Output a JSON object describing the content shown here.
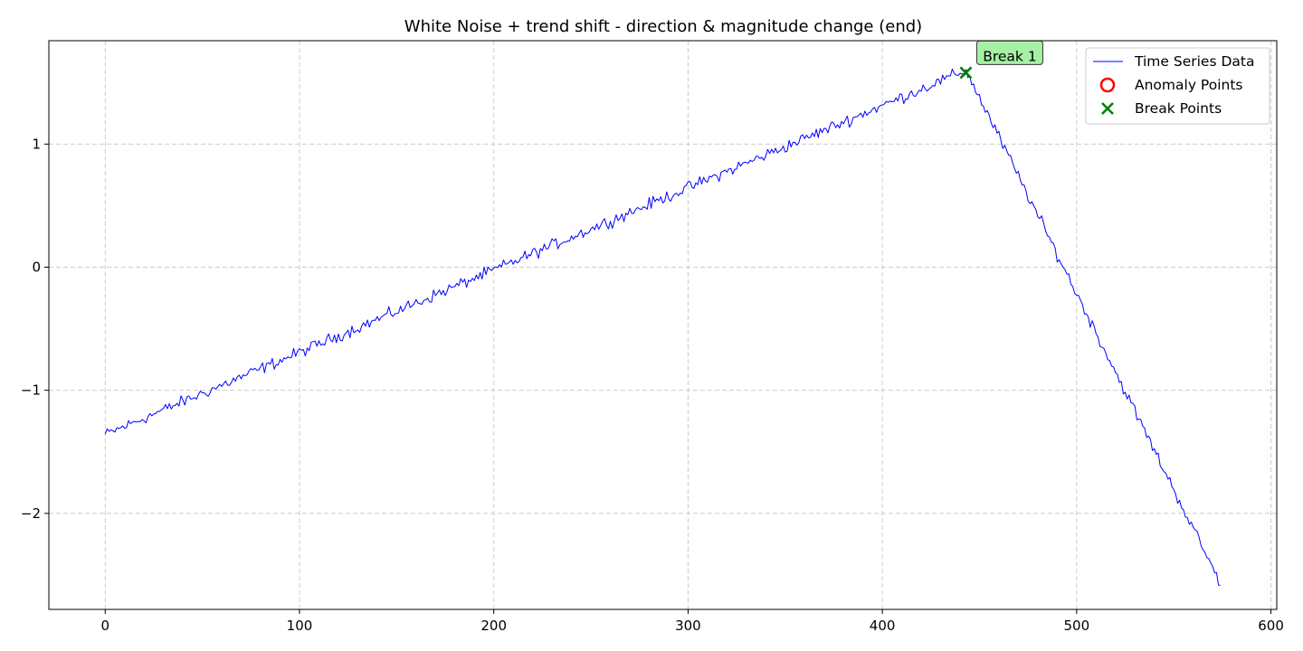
{
  "chart_data": {
    "type": "line",
    "title": "White Noise + trend shift - direction & magnitude change (end)",
    "xlabel": "",
    "ylabel": "",
    "xlim": [
      -29,
      603
    ],
    "ylim": [
      -2.78,
      1.84
    ],
    "x_ticks": [
      0,
      100,
      200,
      300,
      400,
      500,
      600
    ],
    "x_tick_labels": [
      "0",
      "100",
      "200",
      "300",
      "400",
      "500",
      "600"
    ],
    "y_ticks": [
      -2,
      -1,
      0,
      1
    ],
    "y_tick_labels": [
      "−2",
      "−1",
      "0",
      "1"
    ],
    "grid": true,
    "legend_position": "top-right",
    "series": [
      {
        "name": "Time Series Data",
        "color": "#0000ff",
        "segments": [
          {
            "x_start": 0,
            "x_end": 443,
            "y_start": -1.36,
            "y_end": 1.6
          },
          {
            "x_start": 443,
            "x_end": 574,
            "y_start": 1.6,
            "y_end": -2.57
          }
        ],
        "noise_amplitude": 0.03
      }
    ],
    "anomaly_points": [],
    "break_points": [
      {
        "x": 443,
        "y": 1.58
      }
    ],
    "legend": {
      "entries": [
        {
          "label": "Time Series Data",
          "marker": "line",
          "color": "#0000ff"
        },
        {
          "label": "Anomaly Points",
          "marker": "circle",
          "color": "#ff0000"
        },
        {
          "label": "Break Points",
          "marker": "x",
          "color": "#008000"
        }
      ]
    },
    "annotations": [
      {
        "text": "Break 1",
        "x": 443,
        "y": 1.58,
        "box_color": "#a6f0a6"
      }
    ]
  }
}
